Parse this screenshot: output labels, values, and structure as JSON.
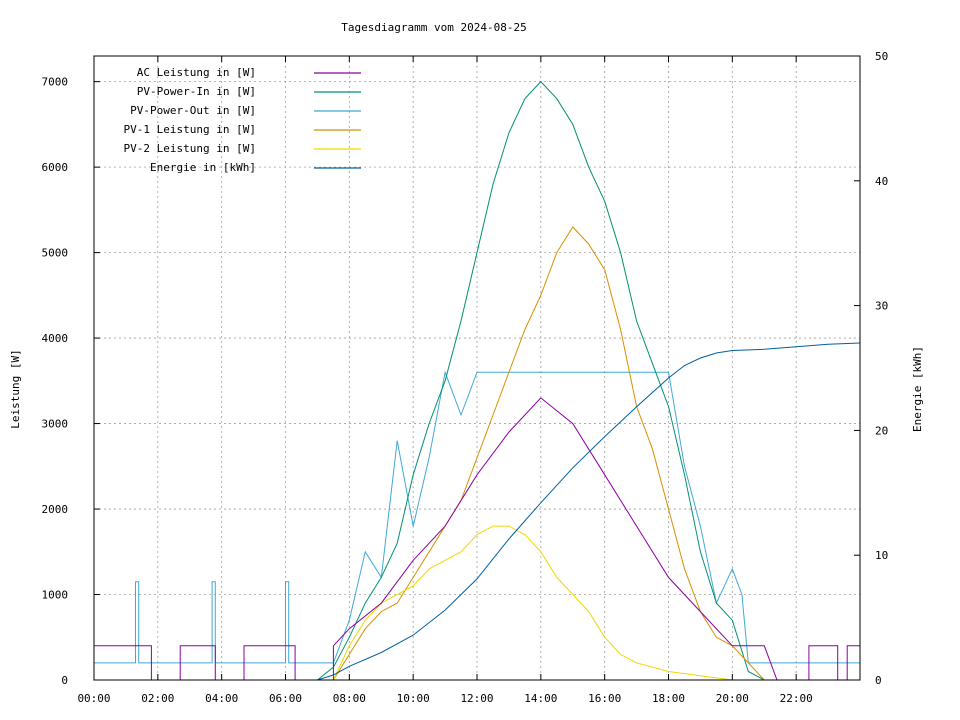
{
  "chart_data": {
    "type": "line",
    "title": "Tagesdiagramm vom 2024-08-25",
    "ylabel": "Leistung [W]",
    "y2label": "Energie [kWh]",
    "xlim_hours": [
      0,
      24
    ],
    "ylim": [
      0,
      7300
    ],
    "y2lim": [
      0,
      50
    ],
    "x_ticks": [
      {
        "h": 0,
        "label": "00:00"
      },
      {
        "h": 2,
        "label": "02:00"
      },
      {
        "h": 4,
        "label": "04:00"
      },
      {
        "h": 6,
        "label": "06:00"
      },
      {
        "h": 8,
        "label": "08:00"
      },
      {
        "h": 10,
        "label": "10:00"
      },
      {
        "h": 12,
        "label": "12:00"
      },
      {
        "h": 14,
        "label": "14:00"
      },
      {
        "h": 16,
        "label": "16:00"
      },
      {
        "h": 18,
        "label": "18:00"
      },
      {
        "h": 20,
        "label": "20:00"
      },
      {
        "h": 22,
        "label": "22:00"
      }
    ],
    "y_ticks": [
      {
        "v": 0,
        "label": "0"
      },
      {
        "v": 1000,
        "label": "1000"
      },
      {
        "v": 2000,
        "label": "2000"
      },
      {
        "v": 3000,
        "label": "3000"
      },
      {
        "v": 4000,
        "label": "4000"
      },
      {
        "v": 5000,
        "label": "5000"
      },
      {
        "v": 6000,
        "label": "6000"
      },
      {
        "v": 7000,
        "label": "7000"
      }
    ],
    "y2_ticks": [
      {
        "v": 0,
        "label": "0"
      },
      {
        "v": 10,
        "label": "10"
      },
      {
        "v": 20,
        "label": "20"
      },
      {
        "v": 30,
        "label": "30"
      },
      {
        "v": 40,
        "label": "40"
      },
      {
        "v": 50,
        "label": "50"
      }
    ],
    "series": [
      {
        "name": "AC Leistung in [W]",
        "color": "#8b00a0",
        "axis": "y1",
        "points": [
          [
            0,
            400
          ],
          [
            1.8,
            400
          ],
          [
            1.8,
            0
          ],
          [
            2.7,
            0
          ],
          [
            2.7,
            400
          ],
          [
            3.8,
            400
          ],
          [
            3.8,
            0
          ],
          [
            4.7,
            0
          ],
          [
            4.7,
            400
          ],
          [
            6.3,
            400
          ],
          [
            6.3,
            0
          ],
          [
            7.5,
            0
          ],
          [
            7.5,
            400
          ],
          [
            8.0,
            600
          ],
          [
            9.0,
            900
          ],
          [
            10.0,
            1400
          ],
          [
            11.0,
            1800
          ],
          [
            12.0,
            2400
          ],
          [
            13.0,
            2900
          ],
          [
            14.0,
            3300
          ],
          [
            15.0,
            3000
          ],
          [
            16.0,
            2400
          ],
          [
            17.0,
            1800
          ],
          [
            18.0,
            1200
          ],
          [
            19.0,
            800
          ],
          [
            20.0,
            400
          ],
          [
            21.0,
            400
          ],
          [
            21.4,
            0
          ],
          [
            22.4,
            0
          ],
          [
            22.4,
            400
          ],
          [
            23.3,
            400
          ],
          [
            23.3,
            0
          ],
          [
            23.6,
            0
          ],
          [
            23.6,
            400
          ],
          [
            24,
            400
          ]
        ]
      },
      {
        "name": "PV-Power-In in [W]",
        "color": "#009070",
        "axis": "y1",
        "points": [
          [
            0,
            0
          ],
          [
            7.0,
            0
          ],
          [
            7.5,
            150
          ],
          [
            8.0,
            500
          ],
          [
            8.5,
            900
          ],
          [
            9.0,
            1200
          ],
          [
            9.5,
            1600
          ],
          [
            10.0,
            2400
          ],
          [
            10.5,
            3000
          ],
          [
            11.0,
            3500
          ],
          [
            11.5,
            4200
          ],
          [
            12.0,
            5000
          ],
          [
            12.5,
            5800
          ],
          [
            13.0,
            6400
          ],
          [
            13.5,
            6800
          ],
          [
            14.0,
            7000
          ],
          [
            14.5,
            6800
          ],
          [
            15.0,
            6500
          ],
          [
            15.5,
            6000
          ],
          [
            16.0,
            5600
          ],
          [
            16.5,
            5000
          ],
          [
            17.0,
            4200
          ],
          [
            17.5,
            3700
          ],
          [
            18.0,
            3200
          ],
          [
            18.5,
            2400
          ],
          [
            19.0,
            1500
          ],
          [
            19.5,
            900
          ],
          [
            20.0,
            700
          ],
          [
            20.5,
            100
          ],
          [
            21.0,
            0
          ],
          [
            24,
            0
          ]
        ]
      },
      {
        "name": "PV-Power-Out in [W]",
        "color": "#40a8d8",
        "axis": "y1",
        "points": [
          [
            0,
            200
          ],
          [
            1.3,
            200
          ],
          [
            1.3,
            1150
          ],
          [
            1.4,
            1150
          ],
          [
            1.4,
            200
          ],
          [
            3.7,
            200
          ],
          [
            3.7,
            1150
          ],
          [
            3.8,
            1150
          ],
          [
            3.8,
            200
          ],
          [
            6.0,
            200
          ],
          [
            6.0,
            1150
          ],
          [
            6.1,
            1150
          ],
          [
            6.1,
            200
          ],
          [
            7.5,
            200
          ],
          [
            8.0,
            700
          ],
          [
            8.5,
            1500
          ],
          [
            9.0,
            1200
          ],
          [
            9.5,
            2800
          ],
          [
            10.0,
            1800
          ],
          [
            10.5,
            2600
          ],
          [
            11.0,
            3600
          ],
          [
            11.5,
            3100
          ],
          [
            12.0,
            3600
          ],
          [
            13.0,
            3600
          ],
          [
            14.0,
            3600
          ],
          [
            15.0,
            3600
          ],
          [
            16.0,
            3600
          ],
          [
            17.0,
            3600
          ],
          [
            18.0,
            3600
          ],
          [
            18.5,
            2500
          ],
          [
            19.0,
            1800
          ],
          [
            19.5,
            900
          ],
          [
            20.0,
            1300
          ],
          [
            20.3,
            1000
          ],
          [
            20.5,
            200
          ],
          [
            24,
            200
          ]
        ]
      },
      {
        "name": "PV-1 Leistung in [W]",
        "color": "#d89000",
        "axis": "y1",
        "points": [
          [
            0,
            0
          ],
          [
            7.5,
            0
          ],
          [
            8.0,
            300
          ],
          [
            8.5,
            600
          ],
          [
            9.0,
            800
          ],
          [
            9.5,
            900
          ],
          [
            10.0,
            1200
          ],
          [
            10.5,
            1500
          ],
          [
            11.0,
            1800
          ],
          [
            11.5,
            2100
          ],
          [
            12.0,
            2600
          ],
          [
            12.5,
            3100
          ],
          [
            13.0,
            3600
          ],
          [
            13.5,
            4100
          ],
          [
            14.0,
            4500
          ],
          [
            14.5,
            5000
          ],
          [
            15.0,
            5300
          ],
          [
            15.5,
            5100
          ],
          [
            16.0,
            4800
          ],
          [
            16.5,
            4100
          ],
          [
            17.0,
            3200
          ],
          [
            17.5,
            2700
          ],
          [
            18.0,
            2000
          ],
          [
            18.5,
            1300
          ],
          [
            19.0,
            800
          ],
          [
            19.5,
            500
          ],
          [
            20.0,
            400
          ],
          [
            20.5,
            200
          ],
          [
            21.0,
            0
          ],
          [
            24,
            0
          ]
        ]
      },
      {
        "name": "PV-2 Leistung in [W]",
        "color": "#f0d800",
        "axis": "y1",
        "points": [
          [
            0,
            0
          ],
          [
            7.5,
            0
          ],
          [
            8.0,
            400
          ],
          [
            8.5,
            700
          ],
          [
            9.0,
            900
          ],
          [
            9.5,
            1000
          ],
          [
            10.0,
            1100
          ],
          [
            10.5,
            1300
          ],
          [
            11.0,
            1400
          ],
          [
            11.5,
            1500
          ],
          [
            12.0,
            1700
          ],
          [
            12.5,
            1800
          ],
          [
            13.0,
            1800
          ],
          [
            13.5,
            1700
          ],
          [
            14.0,
            1500
          ],
          [
            14.5,
            1200
          ],
          [
            15.0,
            1000
          ],
          [
            15.5,
            800
          ],
          [
            16.0,
            500
          ],
          [
            16.5,
            300
          ],
          [
            17.0,
            200
          ],
          [
            17.5,
            150
          ],
          [
            18.0,
            100
          ],
          [
            19.0,
            50
          ],
          [
            20.0,
            0
          ],
          [
            24,
            0
          ]
        ]
      },
      {
        "name": "Energie in [kWh]",
        "color": "#0060a0",
        "axis": "y2",
        "points": [
          [
            0,
            0
          ],
          [
            7.0,
            0
          ],
          [
            7.5,
            0.4
          ],
          [
            8.0,
            1.1
          ],
          [
            9.0,
            2.2
          ],
          [
            10.0,
            3.6
          ],
          [
            11.0,
            5.6
          ],
          [
            12.0,
            8.1
          ],
          [
            13.0,
            11.3
          ],
          [
            14.0,
            14.2
          ],
          [
            15.0,
            17.0
          ],
          [
            16.0,
            19.5
          ],
          [
            17.0,
            21.9
          ],
          [
            18.0,
            24.2
          ],
          [
            18.5,
            25.2
          ],
          [
            19.0,
            25.8
          ],
          [
            19.5,
            26.2
          ],
          [
            20.0,
            26.4
          ],
          [
            21.0,
            26.5
          ],
          [
            22.0,
            26.7
          ],
          [
            23.0,
            26.9
          ],
          [
            24,
            27.0
          ]
        ]
      }
    ]
  }
}
